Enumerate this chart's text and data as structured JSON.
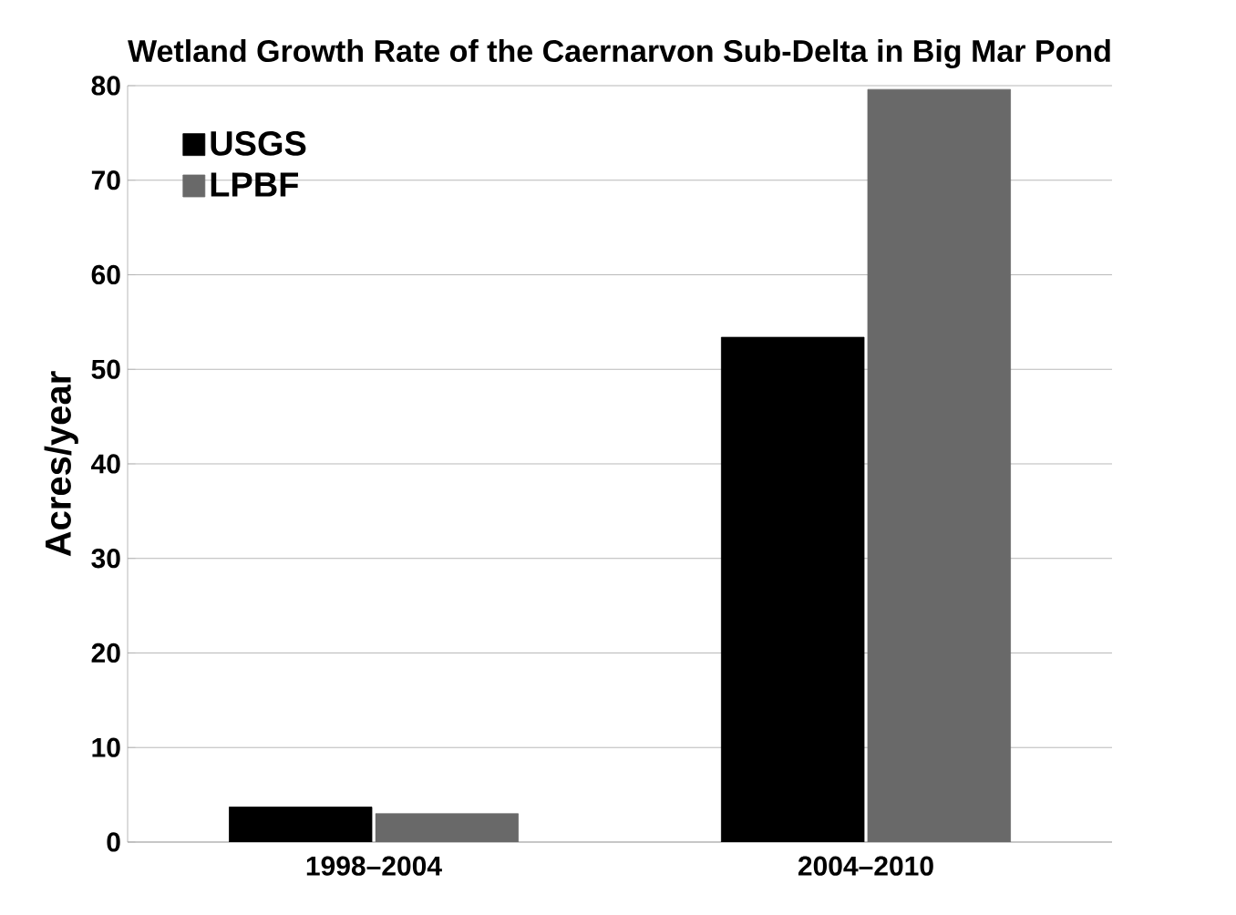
{
  "chart_data": {
    "type": "bar",
    "title": "Wetland Growth Rate of the Caernarvon Sub-Delta in Big Mar Pond",
    "ylabel": "Acres/year",
    "categories": [
      "1998–2004",
      "2004–2010"
    ],
    "series": [
      {
        "name": "USGS",
        "color": "#000000",
        "values": [
          3.7,
          53.4
        ]
      },
      {
        "name": "LPBF",
        "color": "#696969",
        "values": [
          3.0,
          79.6
        ]
      }
    ],
    "ylim": [
      0,
      80
    ],
    "yticks": [
      0,
      10,
      20,
      30,
      40,
      50,
      60,
      70,
      80
    ],
    "grid": "y",
    "legend": "top left"
  }
}
